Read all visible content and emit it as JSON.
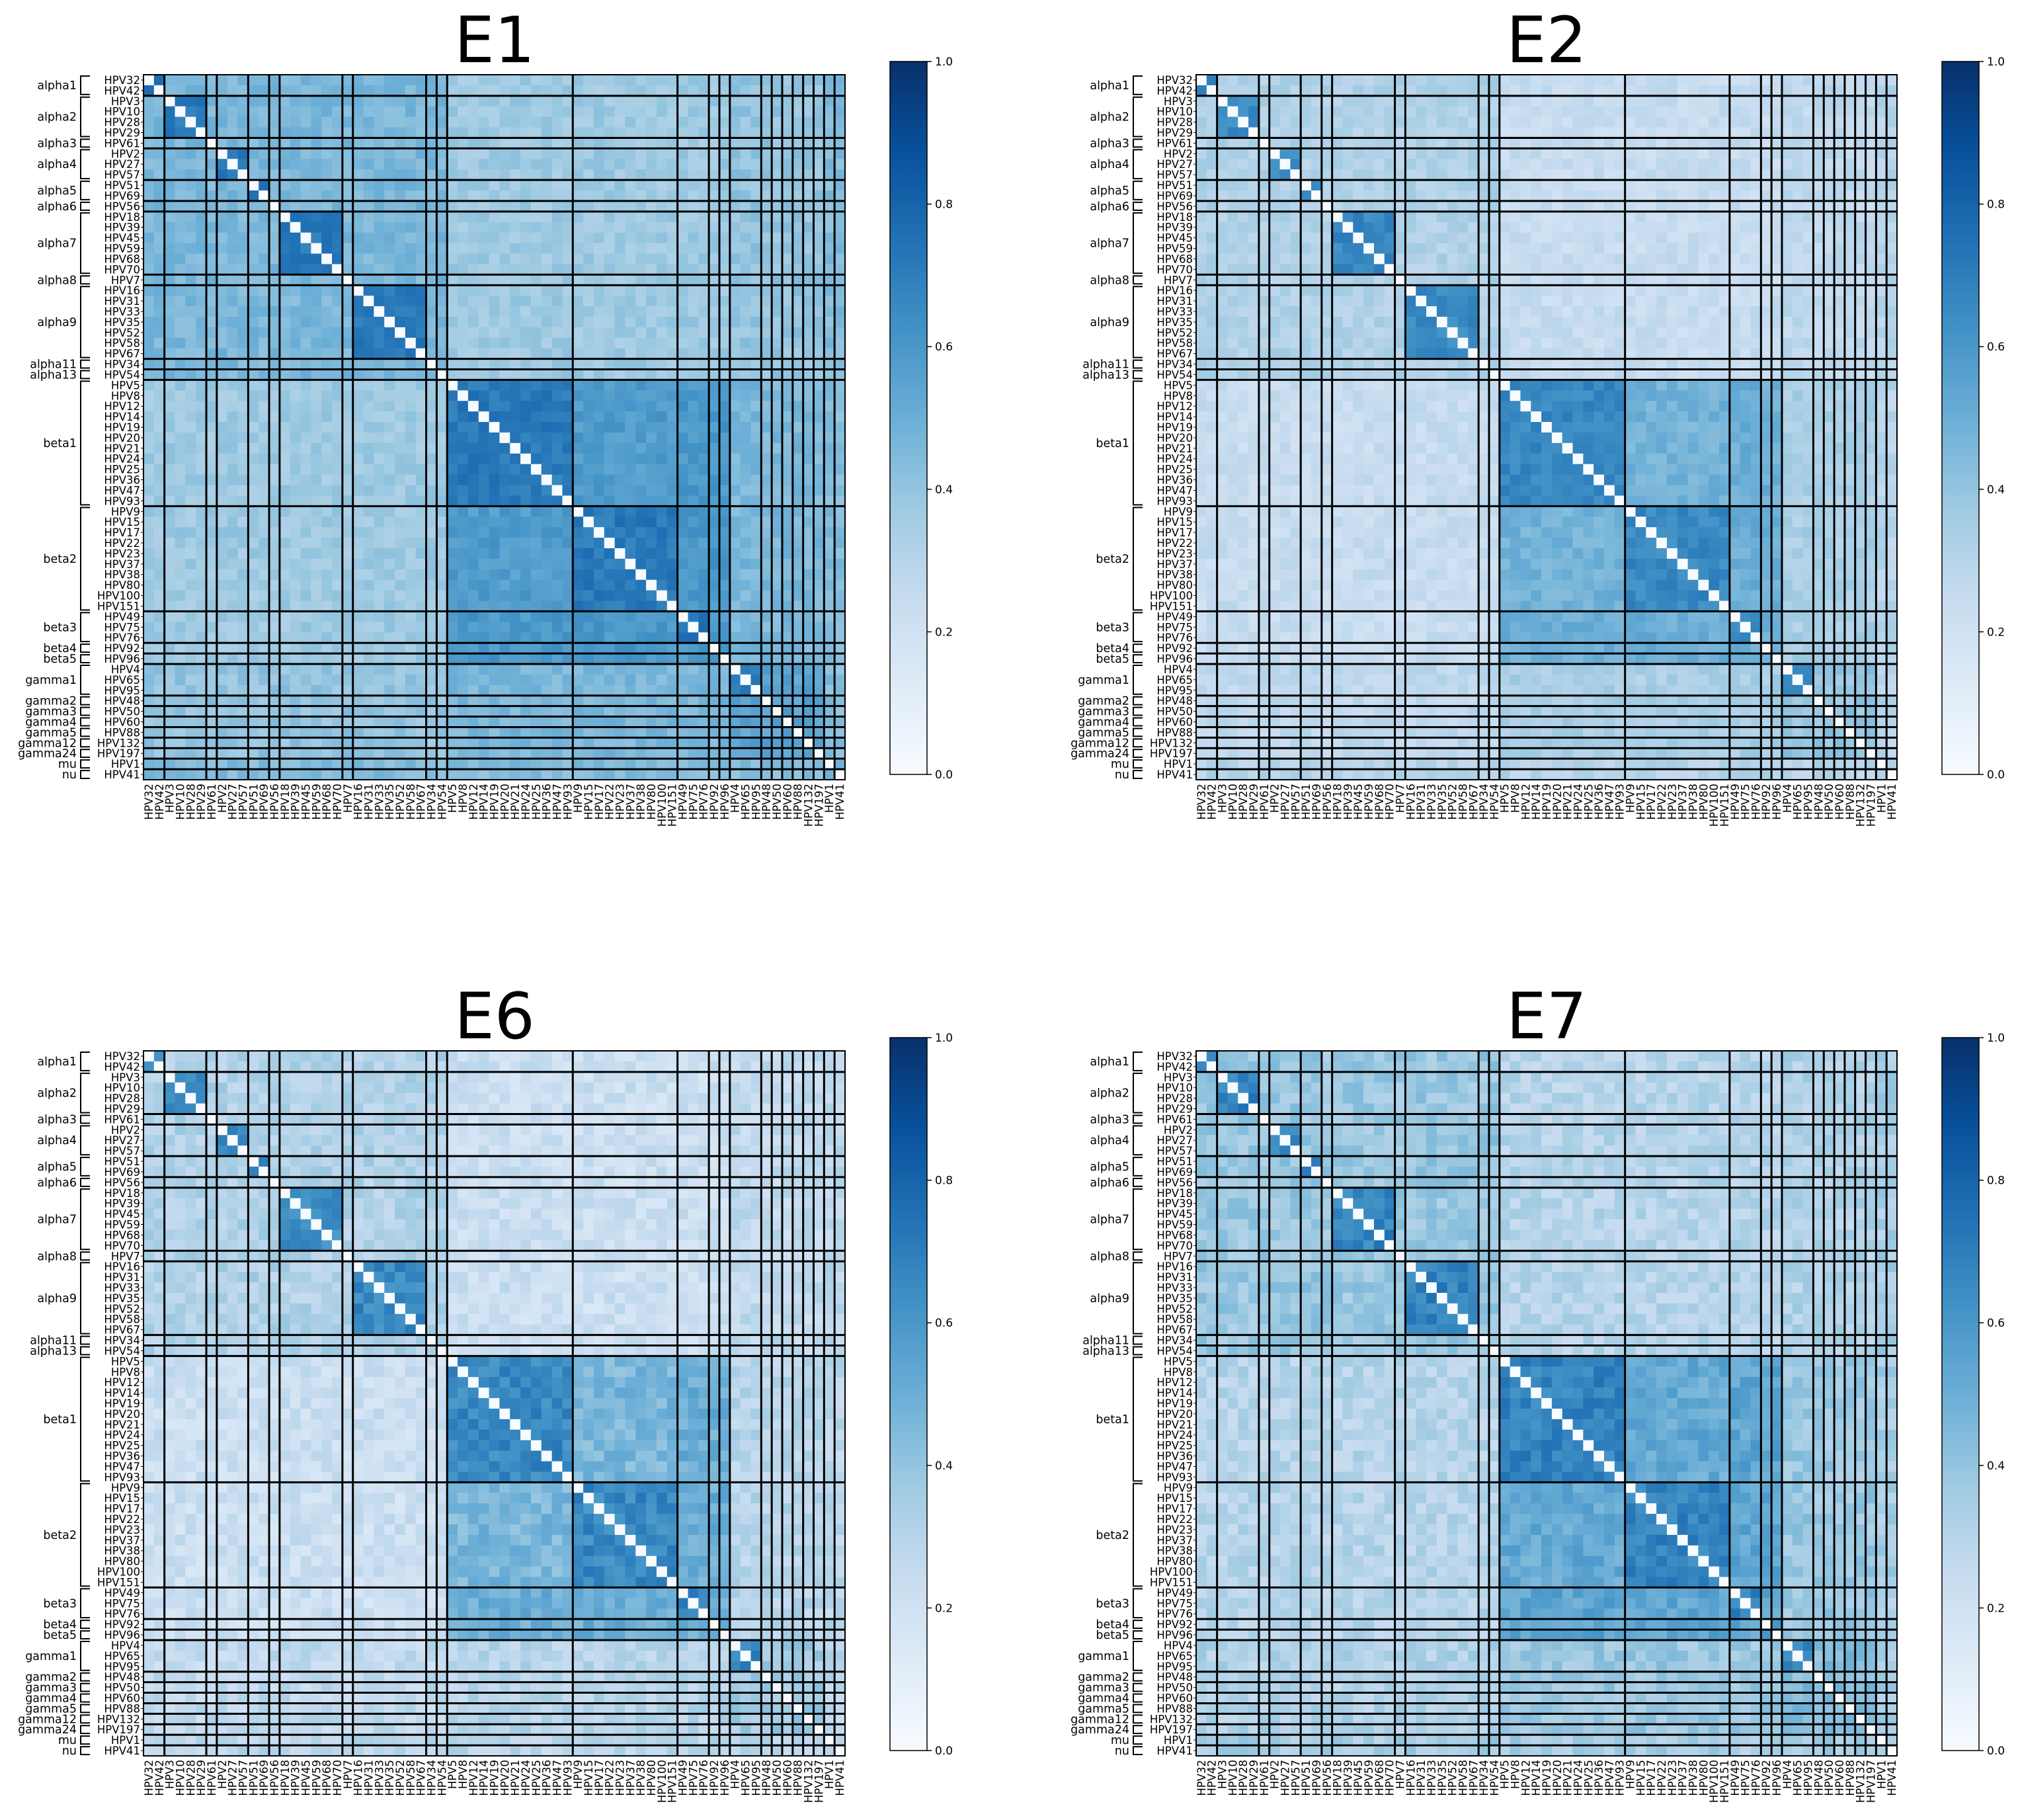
{
  "chart_data": [
    {
      "type": "heatmap",
      "title": "E1",
      "colorbar": {
        "min": 0.0,
        "max": 1.0,
        "ticks": [
          "0.0",
          "0.2",
          "0.4",
          "0.6",
          "0.8",
          "1.0"
        ]
      }
    },
    {
      "type": "heatmap",
      "title": "E2",
      "colorbar": {
        "min": 0.0,
        "max": 1.0,
        "ticks": [
          "0.0",
          "0.2",
          "0.4",
          "0.6",
          "0.8",
          "1.0"
        ]
      }
    },
    {
      "type": "heatmap",
      "title": "E6",
      "colorbar": {
        "min": 0.0,
        "max": 1.0,
        "ticks": [
          "0.0",
          "0.2",
          "0.4",
          "0.6",
          "0.8",
          "1.0"
        ]
      }
    },
    {
      "type": "heatmap",
      "title": "E7",
      "colorbar": {
        "min": 0.0,
        "max": 1.0,
        "ticks": [
          "0.0",
          "0.2",
          "0.4",
          "0.6",
          "0.8",
          "1.0"
        ]
      }
    }
  ],
  "hpv_types": [
    "HPV32",
    "HPV42",
    "HPV3",
    "HPV10",
    "HPV28",
    "HPV29",
    "HPV61",
    "HPV2",
    "HPV27",
    "HPV57",
    "HPV51",
    "HPV69",
    "HPV56",
    "HPV18",
    "HPV39",
    "HPV45",
    "HPV59",
    "HPV68",
    "HPV70",
    "HPV7",
    "HPV16",
    "HPV31",
    "HPV33",
    "HPV35",
    "HPV52",
    "HPV58",
    "HPV67",
    "HPV34",
    "HPV54",
    "HPV5",
    "HPV8",
    "HPV12",
    "HPV14",
    "HPV19",
    "HPV20",
    "HPV21",
    "HPV24",
    "HPV25",
    "HPV36",
    "HPV47",
    "HPV93",
    "HPV9",
    "HPV15",
    "HPV17",
    "HPV22",
    "HPV23",
    "HPV37",
    "HPV38",
    "HPV80",
    "HPV100",
    "HPV151",
    "HPV49",
    "HPV75",
    "HPV76",
    "HPV92",
    "HPV96",
    "HPV4",
    "HPV65",
    "HPV95",
    "HPV48",
    "HPV50",
    "HPV60",
    "HPV88",
    "HPV132",
    "HPV197",
    "HPV1",
    "HPV41"
  ],
  "groups": [
    {
      "name": "alpha1",
      "count": 2
    },
    {
      "name": "alpha2",
      "count": 4
    },
    {
      "name": "alpha3",
      "count": 1
    },
    {
      "name": "alpha4",
      "count": 3
    },
    {
      "name": "alpha5",
      "count": 2
    },
    {
      "name": "alpha6",
      "count": 1
    },
    {
      "name": "alpha7",
      "count": 6
    },
    {
      "name": "alpha8",
      "count": 1
    },
    {
      "name": "alpha9",
      "count": 7
    },
    {
      "name": "alpha11",
      "count": 1
    },
    {
      "name": "alpha13",
      "count": 1
    },
    {
      "name": "beta1",
      "count": 12
    },
    {
      "name": "beta2",
      "count": 10
    },
    {
      "name": "beta3",
      "count": 3
    },
    {
      "name": "beta4",
      "count": 1
    },
    {
      "name": "beta5",
      "count": 1
    },
    {
      "name": "gamma1",
      "count": 3
    },
    {
      "name": "gamma2",
      "count": 1
    },
    {
      "name": "gamma3",
      "count": 1
    },
    {
      "name": "gamma4",
      "count": 1
    },
    {
      "name": "gamma5",
      "count": 1
    },
    {
      "name": "gamma12",
      "count": 1
    },
    {
      "name": "gamma24",
      "count": 1
    },
    {
      "name": "mu",
      "count": 1
    },
    {
      "name": "nu",
      "count": 1
    }
  ]
}
